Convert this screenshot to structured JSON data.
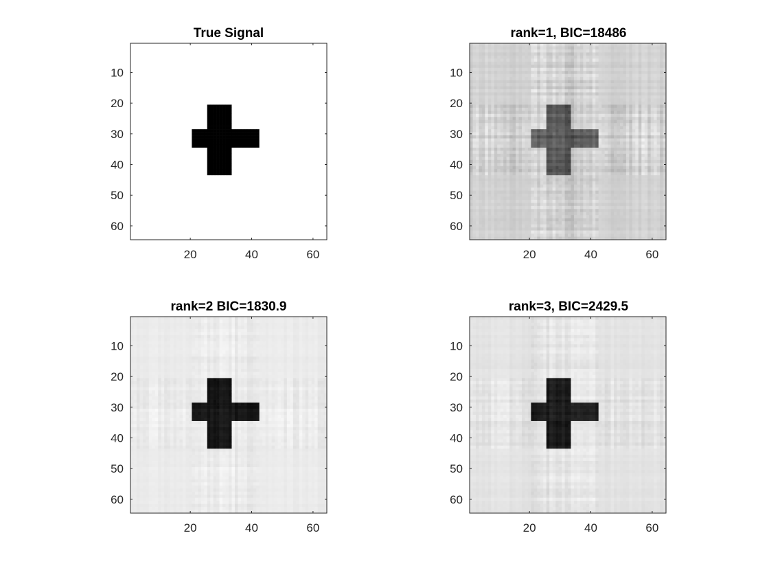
{
  "chart_data": [
    {
      "type": "heatmap",
      "title": "True Signal",
      "xlabel": "",
      "ylabel": "",
      "xlim": [
        0.5,
        64.5
      ],
      "ylim": [
        0.5,
        64.5
      ],
      "y_direction": "reverse",
      "xticks": [
        20,
        40,
        60
      ],
      "yticks": [
        10,
        20,
        30,
        40,
        50,
        60
      ],
      "colormap": "gray",
      "image_size": [
        64,
        64
      ],
      "background_level": 1.0,
      "signal_shape": "cross",
      "signal": {
        "vertical_bar": {
          "cols": [
            26,
            33
          ],
          "rows": [
            21,
            43
          ]
        },
        "horizontal_bar": {
          "cols": [
            21,
            42
          ],
          "rows": [
            29,
            34
          ]
        },
        "level": 0.0
      },
      "noise_level": 0.0
    },
    {
      "type": "heatmap",
      "title": "rank=1,  BIC=18486",
      "xlabel": "",
      "ylabel": "",
      "xlim": [
        0.5,
        64.5
      ],
      "ylim": [
        0.5,
        64.5
      ],
      "y_direction": "reverse",
      "xticks": [
        20,
        40,
        60
      ],
      "yticks": [
        10,
        20,
        30,
        40,
        50,
        60
      ],
      "colormap": "gray",
      "image_size": [
        64,
        64
      ],
      "background_level": 0.82,
      "signal_shape": "cross",
      "signal": {
        "vertical_bar": {
          "cols": [
            26,
            33
          ],
          "rows": [
            21,
            43
          ]
        },
        "horizontal_bar": {
          "cols": [
            21,
            42
          ],
          "rows": [
            29,
            34
          ]
        },
        "level": 0.35
      },
      "noise_level": 0.12
    },
    {
      "type": "heatmap",
      "title": "rank=2  BIC=1830.9",
      "xlabel": "",
      "ylabel": "",
      "xlim": [
        0.5,
        64.5
      ],
      "ylim": [
        0.5,
        64.5
      ],
      "y_direction": "reverse",
      "xticks": [
        20,
        40,
        60
      ],
      "yticks": [
        10,
        20,
        30,
        40,
        50,
        60
      ],
      "colormap": "gray",
      "image_size": [
        64,
        64
      ],
      "background_level": 0.92,
      "signal_shape": "cross",
      "signal": {
        "vertical_bar": {
          "cols": [
            26,
            33
          ],
          "rows": [
            21,
            43
          ]
        },
        "horizontal_bar": {
          "cols": [
            21,
            42
          ],
          "rows": [
            29,
            34
          ]
        },
        "level": 0.08
      },
      "noise_level": 0.05
    },
    {
      "type": "heatmap",
      "title": "rank=3,  BIC=2429.5",
      "xlabel": "",
      "ylabel": "",
      "xlim": [
        0.5,
        64.5
      ],
      "ylim": [
        0.5,
        64.5
      ],
      "y_direction": "reverse",
      "xticks": [
        20,
        40,
        60
      ],
      "yticks": [
        10,
        20,
        30,
        40,
        50,
        60
      ],
      "colormap": "gray",
      "image_size": [
        64,
        64
      ],
      "background_level": 0.89,
      "signal_shape": "cross",
      "signal": {
        "vertical_bar": {
          "cols": [
            26,
            33
          ],
          "rows": [
            21,
            43
          ]
        },
        "horizontal_bar": {
          "cols": [
            21,
            42
          ],
          "rows": [
            29,
            34
          ]
        },
        "level": 0.1
      },
      "noise_level": 0.06
    }
  ]
}
